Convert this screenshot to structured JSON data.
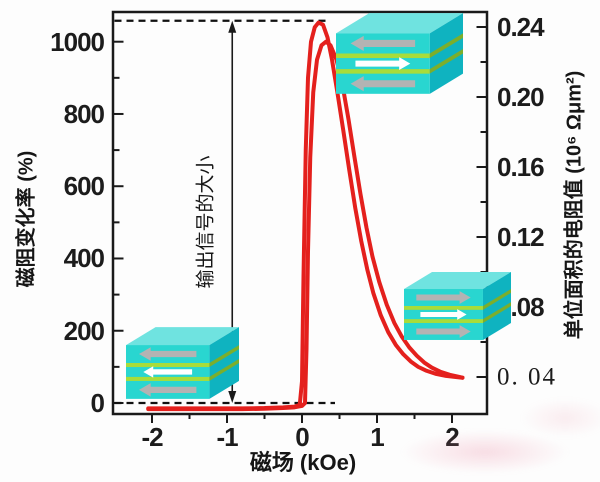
{
  "figure": {
    "background": "#fdfdfd",
    "curve_color": "#e4201d",
    "axis_color": "#1a1a1a",
    "dashed_line_color": "#111111"
  },
  "annotation": {
    "text": "输出信号的大小",
    "arrow_field_x": -0.93,
    "arrow_from_percent": 0,
    "arrow_to_percent": 1058
  },
  "reference_lines": [
    {
      "y_percent": 1058,
      "x_from": -2.5,
      "x_to": 0.38,
      "style": "dashed"
    },
    {
      "y_percent": 0,
      "x_from": -2.5,
      "x_to": 0.44,
      "style": "dashed"
    }
  ],
  "diagrams": [
    {
      "id": "top",
      "layer_arrows": [
        "left",
        "right",
        "left"
      ]
    },
    {
      "id": "bottom-left",
      "layer_arrows": [
        "left",
        "left",
        "left"
      ]
    },
    {
      "id": "bottom-right",
      "layer_arrows": [
        "right",
        "right",
        "right"
      ]
    }
  ],
  "diagram_colors": {
    "top_face": "#6fe3e0",
    "front_face": "#29d6d0",
    "side_face": "#0fb3c0",
    "stripe_front": "#a8dc3a",
    "stripe_side": "#7cae2b",
    "arrow_gray": "#b3b3b3",
    "arrow_white": "#ffffff"
  },
  "chart_data": {
    "type": "line",
    "title": "",
    "xlabel": "磁场 (kOe)",
    "ylabel_left": "磁阻变化率 (%)",
    "ylabel_right": "单位面积的电阻值 (10⁶ Ωμm²)",
    "xlim": [
      -2.53,
      2.47
    ],
    "ylim_left": [
      -30,
      1086
    ],
    "ylim_right": [
      0.019,
      0.249
    ],
    "grid": false,
    "legend": "none",
    "x_ticks": [
      -2,
      -1,
      0,
      1,
      2
    ],
    "x_tick_labels": [
      "-2",
      "-1",
      "0",
      "1",
      "2"
    ],
    "x_minor_ticks": [
      -1.5,
      -0.5,
      0.5,
      1.5
    ],
    "y_left_ticks": [
      0,
      200,
      400,
      600,
      800,
      1000
    ],
    "y_left_tick_labels": [
      "0",
      "200",
      "400",
      "600",
      "800",
      "1000"
    ],
    "y_left_minor_ticks": [
      100,
      300,
      500,
      700,
      900
    ],
    "y_right_ticks": [
      0.24,
      0.2,
      0.16,
      0.12,
      0.08,
      0.04
    ],
    "y_right_tick_labels": [
      "0.24",
      "0.20",
      "0.16",
      "0.12",
      "0.08",
      "0. 04"
    ],
    "y_right_tick_serif": [
      false,
      false,
      false,
      false,
      false,
      true
    ],
    "y_right_minor_ticks": [
      0.22,
      0.18,
      0.14,
      0.1,
      0.06
    ],
    "series": [
      {
        "name": "hysteresis_branch_outer",
        "points": [
          [
            -2.05,
            -15
          ],
          [
            -1.6,
            -15
          ],
          [
            -1.2,
            -15
          ],
          [
            -0.8,
            -15
          ],
          [
            -0.5,
            -14
          ],
          [
            -0.25,
            -12
          ],
          [
            -0.1,
            -10
          ],
          [
            -0.03,
            -5
          ],
          [
            0,
            60
          ],
          [
            0.02,
            350
          ],
          [
            0.05,
            700
          ],
          [
            0.08,
            900
          ],
          [
            0.12,
            1000
          ],
          [
            0.17,
            1040
          ],
          [
            0.22,
            1053
          ],
          [
            0.28,
            1047
          ],
          [
            0.34,
            1012
          ],
          [
            0.4,
            950
          ],
          [
            0.47,
            862
          ],
          [
            0.55,
            755
          ],
          [
            0.63,
            645
          ],
          [
            0.71,
            540
          ],
          [
            0.79,
            448
          ],
          [
            0.87,
            370
          ],
          [
            0.95,
            305
          ],
          [
            1.05,
            243
          ],
          [
            1.15,
            196
          ],
          [
            1.25,
            161
          ],
          [
            1.35,
            135
          ],
          [
            1.45,
            115
          ],
          [
            1.55,
            100
          ],
          [
            1.65,
            90
          ],
          [
            1.78,
            81
          ],
          [
            1.92,
            75
          ],
          [
            2.05,
            72
          ],
          [
            2.14,
            70
          ]
        ]
      },
      {
        "name": "hysteresis_branch_inner",
        "points": [
          [
            -2.05,
            -17
          ],
          [
            -1.6,
            -17
          ],
          [
            -1.2,
            -17
          ],
          [
            -0.8,
            -17
          ],
          [
            -0.5,
            -16
          ],
          [
            -0.25,
            -14
          ],
          [
            -0.1,
            -12
          ],
          [
            0,
            -8
          ],
          [
            0.04,
            0
          ],
          [
            0.06,
            150
          ],
          [
            0.08,
            420
          ],
          [
            0.11,
            680
          ],
          [
            0.15,
            860
          ],
          [
            0.2,
            950
          ],
          [
            0.26,
            990
          ],
          [
            0.32,
            1000
          ],
          [
            0.38,
            990
          ],
          [
            0.46,
            950
          ],
          [
            0.54,
            880
          ],
          [
            0.62,
            785
          ],
          [
            0.7,
            680
          ],
          [
            0.78,
            578
          ],
          [
            0.86,
            485
          ],
          [
            0.94,
            405
          ],
          [
            1.03,
            335
          ],
          [
            1.13,
            272
          ],
          [
            1.23,
            222
          ],
          [
            1.33,
            184
          ],
          [
            1.43,
            154
          ],
          [
            1.53,
            131
          ],
          [
            1.63,
            112
          ],
          [
            1.73,
            98
          ],
          [
            1.85,
            86
          ],
          [
            1.97,
            78
          ],
          [
            2.1,
            72
          ],
          [
            2.14,
            70
          ]
        ]
      }
    ]
  }
}
